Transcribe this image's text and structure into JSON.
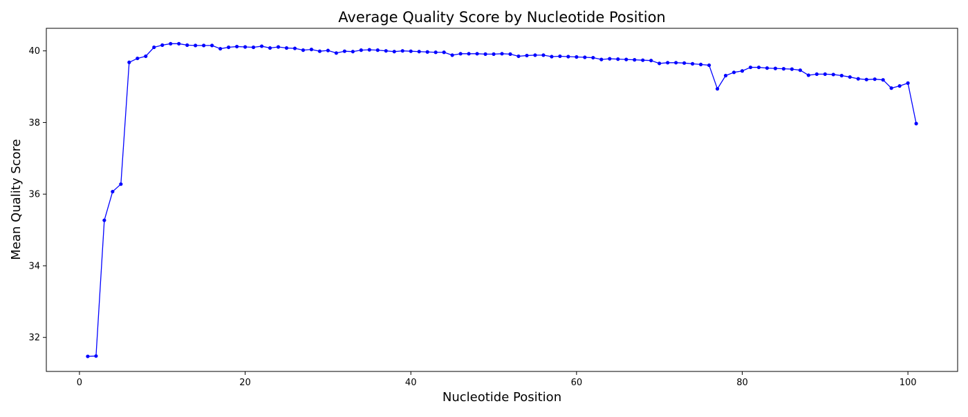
{
  "chart_data": {
    "type": "line",
    "title": "Average Quality Score by Nucleotide Position",
    "xlabel": "Nucleotide Position",
    "ylabel": "Mean Quality Score",
    "xlim": [
      -4,
      106
    ],
    "ylim": [
      31.05,
      40.63
    ],
    "xticks": [
      0,
      20,
      40,
      60,
      80,
      100
    ],
    "yticks": [
      32,
      34,
      36,
      38,
      40
    ],
    "grid": false,
    "colors": {
      "line": "#0000ff",
      "marker": "#0000ff",
      "axis": "#000000"
    },
    "series": [
      {
        "x": [
          1,
          2,
          3,
          4,
          5,
          6,
          7,
          8,
          9,
          10,
          11,
          12,
          13,
          14,
          15,
          16,
          17,
          18,
          19,
          20,
          21,
          22,
          23,
          24,
          25,
          26,
          27,
          28,
          29,
          30,
          31,
          32,
          33,
          34,
          35,
          36,
          37,
          38,
          39,
          40,
          41,
          42,
          43,
          44,
          45,
          46,
          47,
          48,
          49,
          50,
          51,
          52,
          53,
          54,
          55,
          56,
          57,
          58,
          59,
          60,
          61,
          62,
          63,
          64,
          65,
          66,
          67,
          68,
          69,
          70,
          71,
          72,
          73,
          74,
          75,
          76,
          77,
          78,
          79,
          80,
          81,
          82,
          83,
          84,
          85,
          86,
          87,
          88,
          89,
          90,
          91,
          92,
          93,
          94,
          95,
          96,
          97,
          98,
          99,
          100,
          101
        ],
        "values": [
          31.47,
          31.48,
          35.27,
          36.07,
          36.28,
          39.68,
          39.79,
          39.85,
          40.1,
          40.16,
          40.2,
          40.2,
          40.16,
          40.15,
          40.15,
          40.15,
          40.06,
          40.1,
          40.12,
          40.11,
          40.1,
          40.13,
          40.08,
          40.11,
          40.08,
          40.07,
          40.02,
          40.04,
          39.99,
          40.01,
          39.94,
          39.99,
          39.98,
          40.02,
          40.03,
          40.02,
          40.0,
          39.98,
          40.0,
          39.99,
          39.98,
          39.97,
          39.96,
          39.96,
          39.88,
          39.92,
          39.92,
          39.92,
          39.91,
          39.91,
          39.92,
          39.91,
          39.85,
          39.87,
          39.88,
          39.88,
          39.84,
          39.85,
          39.84,
          39.83,
          39.82,
          39.81,
          39.76,
          39.78,
          39.77,
          39.76,
          39.75,
          39.74,
          39.73,
          39.65,
          39.67,
          39.67,
          39.66,
          39.64,
          39.62,
          39.6,
          38.94,
          39.31,
          39.4,
          39.44,
          39.54,
          39.54,
          39.52,
          39.51,
          39.5,
          39.49,
          39.46,
          39.32,
          39.35,
          39.35,
          39.34,
          39.31,
          39.27,
          39.22,
          39.2,
          39.21,
          39.19,
          38.96,
          39.02,
          39.1,
          37.97
        ]
      }
    ]
  }
}
